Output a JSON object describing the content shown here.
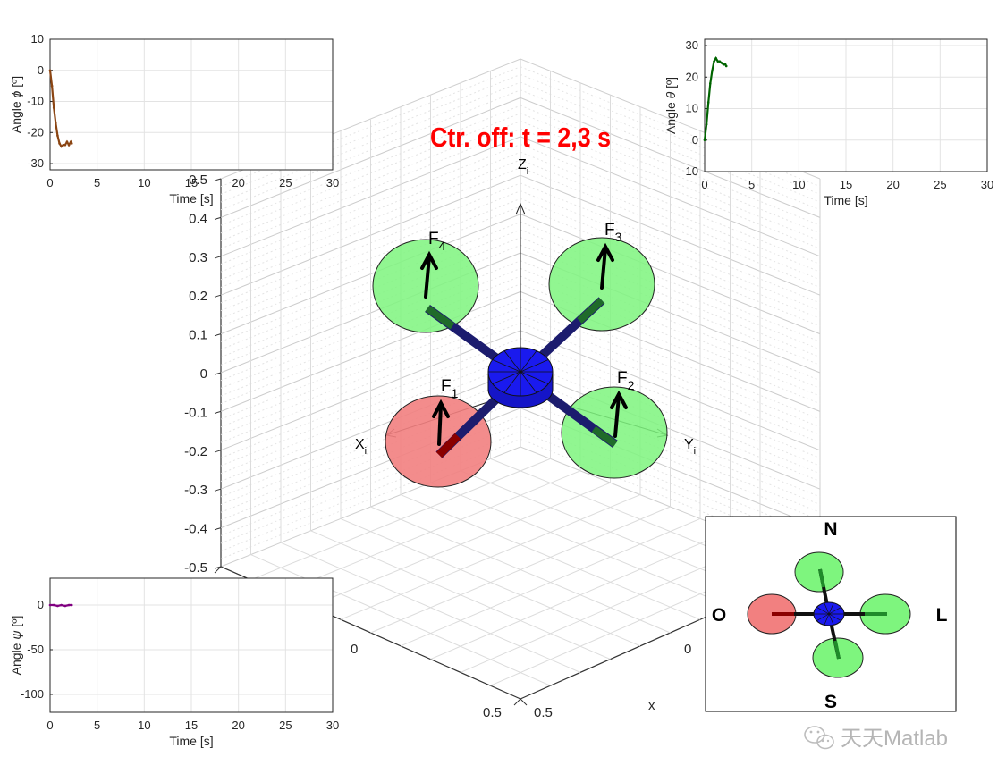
{
  "title": "Ctr. off: t = 2,3 s",
  "scene3d": {
    "z_ticks": [
      "0.5",
      "0.4",
      "0.3",
      "0.2",
      "0.1",
      "0",
      "-0.1",
      "-0.2",
      "-0.3",
      "-0.4",
      "-0.5"
    ],
    "axis_x_label": "X",
    "axis_y_label": "Y",
    "axis_z_label": "Z",
    "axis_sub": "i",
    "floor_left_ticks": [
      "0",
      "0.5"
    ],
    "floor_right_ticks": [
      "0.5",
      "0"
    ],
    "x_axis_label": "x",
    "force_labels": [
      {
        "name": "F",
        "sub": "1"
      },
      {
        "name": "F",
        "sub": "2"
      },
      {
        "name": "F",
        "sub": "3"
      },
      {
        "name": "F",
        "sub": "4"
      }
    ],
    "colors": {
      "rotor_green": "#7ef57e",
      "rotor_red": "#f28080",
      "hub_blue": "#1a1aee",
      "arm_navy": "#1c1c6e",
      "title_red": "#ff0000"
    }
  },
  "chart_data": [
    {
      "type": "line",
      "name": "roll",
      "ylabel_pre": "Angle ",
      "ylabel_sym": "ϕ",
      "ylabel_post": " [º]",
      "xlabel": "Time [s]",
      "xlim": [
        0,
        30
      ],
      "ylim": [
        -32,
        10
      ],
      "xticks": [
        "0",
        "5",
        "10",
        "15",
        "20",
        "25",
        "30"
      ],
      "yticks": [
        "10",
        "0",
        "-10",
        "-20",
        "-30"
      ],
      "grid": true,
      "color": "#8b4513",
      "x": [
        0,
        0.2,
        0.4,
        0.6,
        0.8,
        1.0,
        1.2,
        1.4,
        1.6,
        1.8,
        2.0,
        2.2,
        2.3
      ],
      "y": [
        0,
        -5,
        -12,
        -17,
        -21,
        -23.5,
        -24.5,
        -24,
        -24,
        -23,
        -24,
        -23,
        -23.5
      ]
    },
    {
      "type": "line",
      "name": "pitch",
      "ylabel_pre": "Angle ",
      "ylabel_sym": "θ",
      "ylabel_post": " [º]",
      "xlabel": "Time [s]",
      "xlim": [
        0,
        30
      ],
      "ylim": [
        -10,
        32
      ],
      "xticks": [
        "0",
        "5",
        "10",
        "15",
        "20",
        "25",
        "30"
      ],
      "yticks": [
        "30",
        "20",
        "10",
        "0",
        "-10"
      ],
      "grid": true,
      "color": "#006400",
      "x": [
        0,
        0.2,
        0.4,
        0.6,
        0.8,
        1.0,
        1.2,
        1.4,
        1.6,
        1.8,
        2.0,
        2.2,
        2.3
      ],
      "y": [
        0,
        5,
        12,
        18,
        22,
        25,
        26,
        25,
        25,
        24.5,
        24,
        24,
        23.5
      ]
    },
    {
      "type": "line",
      "name": "yaw",
      "ylabel_pre": "Angle ",
      "ylabel_sym": "ψ",
      "ylabel_post": " [º]",
      "xlabel": "Time [s]",
      "xlim": [
        0,
        30
      ],
      "ylim": [
        -120,
        30
      ],
      "xticks": [
        "0",
        "5",
        "10",
        "15",
        "20",
        "25",
        "30"
      ],
      "yticks": [
        "0",
        "-50",
        "-100"
      ],
      "grid": true,
      "color": "#800080",
      "x": [
        0,
        0.4,
        0.8,
        1.2,
        1.6,
        2.0,
        2.3
      ],
      "y": [
        0,
        0,
        -1,
        0,
        -1,
        0,
        0
      ]
    }
  ],
  "compass": {
    "north": "N",
    "south": "S",
    "east": "L",
    "west": "O"
  },
  "watermark": {
    "text": "天天Matlab"
  }
}
